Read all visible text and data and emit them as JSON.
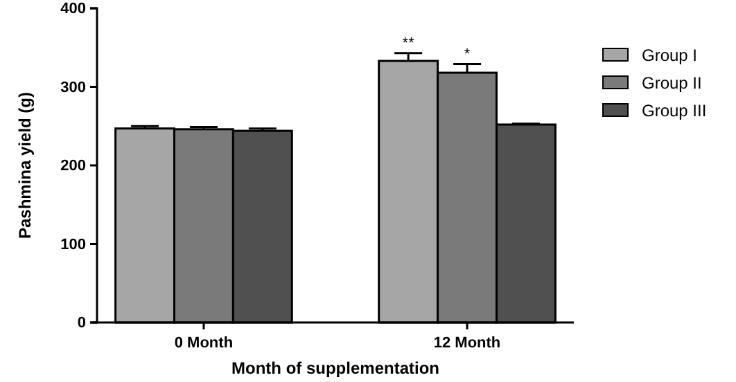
{
  "chart_data": {
    "type": "bar",
    "xlabel": "Month of supplementation",
    "ylabel": "Pashmina yield (g)",
    "categories": [
      "0 Month",
      "12 Month"
    ],
    "series": [
      {
        "name": "Group I",
        "color": "#a6a6a6",
        "values": [
          247,
          333
        ],
        "errors": [
          3,
          10
        ]
      },
      {
        "name": "Group II",
        "color": "#7a7a7a",
        "values": [
          246,
          318
        ],
        "errors": [
          3,
          11
        ]
      },
      {
        "name": "Group III",
        "color": "#505050",
        "values": [
          244,
          252
        ],
        "errors": [
          3,
          1
        ]
      }
    ],
    "ylim": [
      0,
      400
    ],
    "yticks": [
      0,
      100,
      200,
      300,
      400
    ],
    "legend": "right",
    "annotations": [
      "**",
      "*"
    ]
  }
}
